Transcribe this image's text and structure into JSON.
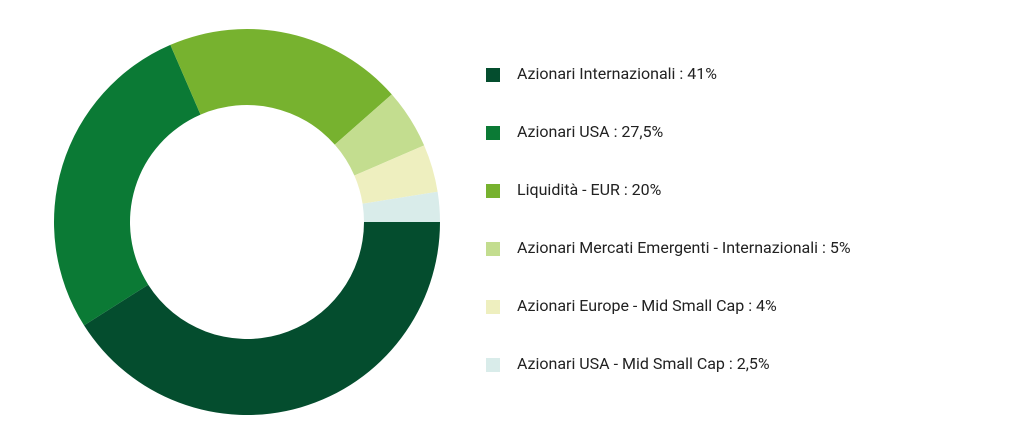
{
  "chart_data": {
    "type": "donut",
    "categories": [
      "Azionari Internazionali : 41%",
      "Azionari USA : 27,5%",
      "Liquidità - EUR : 20%",
      "Azionari Mercati Emergenti - Internazionali : 5%",
      "Azionari Europe - Mid Small Cap : 4%",
      "Azionari USA - Mid Small Cap : 2,5%"
    ],
    "values": [
      41,
      27.5,
      20,
      5,
      4,
      2.5
    ],
    "colors": [
      "#044d2e",
      "#0b7a35",
      "#77b22f",
      "#c3dd8f",
      "#eeefbf",
      "#d9ecea"
    ]
  }
}
